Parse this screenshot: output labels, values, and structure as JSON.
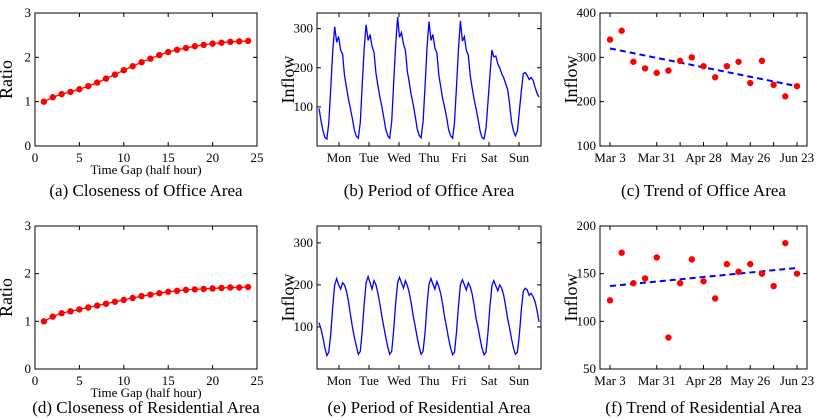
{
  "colors": {
    "red": "#ff0000",
    "blue": "#0000ff"
  },
  "chart_data": [
    {
      "id": "a",
      "type": "line",
      "caption": "(a) Closeness of Office Area",
      "xlabel": "Time Gap (half hour)",
      "ylabel": "Ratio",
      "xlim": [
        0,
        25
      ],
      "ylim": [
        0,
        3
      ],
      "xticks": [
        0,
        5,
        10,
        15,
        20,
        25
      ],
      "yticks": [
        0,
        1,
        2,
        3
      ],
      "series": [
        {
          "color": "#ff0000",
          "markers": true,
          "x": [
            1,
            2,
            3,
            4,
            5,
            6,
            7,
            8,
            9,
            10,
            11,
            12,
            13,
            14,
            15,
            16,
            17,
            18,
            19,
            20,
            21,
            22,
            23,
            24
          ],
          "y": [
            1.0,
            1.1,
            1.17,
            1.22,
            1.28,
            1.35,
            1.43,
            1.52,
            1.61,
            1.71,
            1.8,
            1.89,
            1.97,
            2.05,
            2.12,
            2.17,
            2.21,
            2.25,
            2.28,
            2.31,
            2.33,
            2.35,
            2.36,
            2.37
          ]
        }
      ]
    },
    {
      "id": "b",
      "type": "line",
      "caption": "(b) Period of Office Area",
      "xlabel": "",
      "ylabel": "Inflow",
      "ylim": [
        0,
        340
      ],
      "yticks": [
        100,
        200,
        300
      ],
      "xcategories": [
        "Mon",
        "Tue",
        "Wed",
        "Thu",
        "Fri",
        "Sat",
        "Sun"
      ],
      "series": [
        {
          "color": "#0000ff",
          "y": [
            96,
            65,
            40,
            22,
            18,
            60,
            150,
            245,
            305,
            265,
            280,
            245,
            235,
            180,
            150,
            120,
            95,
            70,
            40,
            25,
            20,
            60,
            155,
            250,
            310,
            270,
            285,
            255,
            240,
            185,
            155,
            125,
            100,
            72,
            42,
            26,
            20,
            62,
            158,
            255,
            330,
            278,
            290,
            260,
            245,
            190,
            160,
            130,
            105,
            75,
            44,
            27,
            21,
            62,
            155,
            250,
            318,
            270,
            285,
            250,
            238,
            182,
            150,
            120,
            98,
            72,
            42,
            26,
            20,
            60,
            152,
            248,
            320,
            268,
            280,
            245,
            232,
            178,
            148,
            118,
            95,
            68,
            38,
            22,
            18,
            45,
            110,
            180,
            245,
            228,
            230,
            210,
            200,
            185,
            175,
            160,
            145,
            110,
            62,
            38,
            26,
            38,
            90,
            140,
            185,
            188,
            180,
            170,
            175,
            168,
            150,
            135,
            125
          ]
        }
      ]
    },
    {
      "id": "c",
      "type": "scatter",
      "caption": "(c) Trend of Office Area",
      "ylabel": "Inflow",
      "ylim": [
        100,
        400
      ],
      "yticks": [
        100,
        200,
        300,
        400
      ],
      "xlim": [
        0,
        16
      ],
      "xticks": [
        0,
        4,
        6,
        8,
        10,
        12,
        14,
        16
      ],
      "xticklabels": [
        "Mar 3",
        "Mar 31",
        "",
        "Apr 28",
        "",
        "May 26",
        "",
        "Jun 23"
      ],
      "points": [
        {
          "x": 0,
          "y": 340
        },
        {
          "x": 1,
          "y": 360
        },
        {
          "x": 2,
          "y": 290
        },
        {
          "x": 3,
          "y": 275
        },
        {
          "x": 4,
          "y": 265
        },
        {
          "x": 5,
          "y": 270
        },
        {
          "x": 6,
          "y": 292
        },
        {
          "x": 7,
          "y": 300
        },
        {
          "x": 8,
          "y": 280
        },
        {
          "x": 9,
          "y": 255
        },
        {
          "x": 10,
          "y": 280
        },
        {
          "x": 11,
          "y": 290
        },
        {
          "x": 12,
          "y": 242
        },
        {
          "x": 13,
          "y": 292
        },
        {
          "x": 14,
          "y": 238
        },
        {
          "x": 15,
          "y": 212
        },
        {
          "x": 16,
          "y": 235
        }
      ],
      "trend": {
        "color": "#0000ff",
        "x": [
          0,
          16
        ],
        "y": [
          320,
          235
        ]
      }
    },
    {
      "id": "d",
      "type": "line",
      "caption": "(d) Closeness of Residential Area",
      "xlabel": "Time Gap (half hour)",
      "ylabel": "Ratio",
      "xlim": [
        0,
        25
      ],
      "ylim": [
        0,
        3
      ],
      "xticks": [
        0,
        5,
        10,
        15,
        20,
        25
      ],
      "yticks": [
        0,
        1,
        2,
        3
      ],
      "series": [
        {
          "color": "#ff0000",
          "markers": true,
          "x": [
            1,
            2,
            3,
            4,
            5,
            6,
            7,
            8,
            9,
            10,
            11,
            12,
            13,
            14,
            15,
            16,
            17,
            18,
            19,
            20,
            21,
            22,
            23,
            24
          ],
          "y": [
            1.0,
            1.1,
            1.17,
            1.21,
            1.25,
            1.29,
            1.33,
            1.37,
            1.41,
            1.45,
            1.49,
            1.53,
            1.56,
            1.59,
            1.62,
            1.64,
            1.66,
            1.67,
            1.68,
            1.69,
            1.7,
            1.71,
            1.71,
            1.72
          ]
        }
      ]
    },
    {
      "id": "e",
      "type": "line",
      "caption": "(e) Period of Residential Area",
      "xlabel": "",
      "ylabel": "Inflow",
      "ylim": [
        0,
        340
      ],
      "yticks": [
        100,
        200,
        300
      ],
      "xcategories": [
        "Mon",
        "Tue",
        "Wed",
        "Thu",
        "Fri",
        "Sat",
        "Sun"
      ],
      "series": [
        {
          "color": "#0000ff",
          "y": [
            110,
            95,
            75,
            50,
            32,
            40,
            85,
            150,
            200,
            215,
            200,
            190,
            205,
            200,
            185,
            160,
            130,
            100,
            75,
            55,
            35,
            42,
            90,
            155,
            205,
            220,
            205,
            190,
            210,
            200,
            180,
            155,
            125,
            100,
            75,
            52,
            35,
            42,
            90,
            155,
            205,
            218,
            205,
            192,
            210,
            198,
            180,
            155,
            125,
            100,
            75,
            52,
            35,
            42,
            88,
            152,
            202,
            215,
            202,
            190,
            208,
            196,
            178,
            152,
            122,
            98,
            72,
            50,
            34,
            40,
            88,
            150,
            200,
            212,
            200,
            188,
            205,
            195,
            178,
            150,
            120,
            98,
            72,
            50,
            34,
            40,
            85,
            148,
            198,
            210,
            198,
            186,
            200,
            192,
            176,
            150,
            120,
            98,
            72,
            50,
            35,
            40,
            82,
            140,
            185,
            192,
            188,
            175,
            180,
            172,
            160,
            140,
            112
          ]
        }
      ]
    },
    {
      "id": "f",
      "type": "scatter",
      "caption": "(f) Trend of Residential Area",
      "ylabel": "Inflow",
      "ylim": [
        50,
        200
      ],
      "yticks": [
        50,
        100,
        150,
        200
      ],
      "xlim": [
        0,
        16
      ],
      "xticks": [
        0,
        4,
        6,
        8,
        10,
        12,
        14,
        16
      ],
      "xticklabels": [
        "Mar 3",
        "Mar 31",
        "",
        "Apr 28",
        "",
        "May 26",
        "",
        "Jun 23"
      ],
      "points": [
        {
          "x": 0,
          "y": 122
        },
        {
          "x": 1,
          "y": 172
        },
        {
          "x": 2,
          "y": 140
        },
        {
          "x": 3,
          "y": 145
        },
        {
          "x": 4,
          "y": 167
        },
        {
          "x": 5,
          "y": 83
        },
        {
          "x": 6,
          "y": 140
        },
        {
          "x": 7,
          "y": 165
        },
        {
          "x": 8,
          "y": 142
        },
        {
          "x": 9,
          "y": 124
        },
        {
          "x": 10,
          "y": 160
        },
        {
          "x": 11,
          "y": 152
        },
        {
          "x": 12,
          "y": 160
        },
        {
          "x": 13,
          "y": 150
        },
        {
          "x": 14,
          "y": 137
        },
        {
          "x": 15,
          "y": 182
        },
        {
          "x": 16,
          "y": 150
        }
      ],
      "trend": {
        "color": "#0000ff",
        "x": [
          0,
          16
        ],
        "y": [
          137,
          156
        ]
      }
    }
  ]
}
